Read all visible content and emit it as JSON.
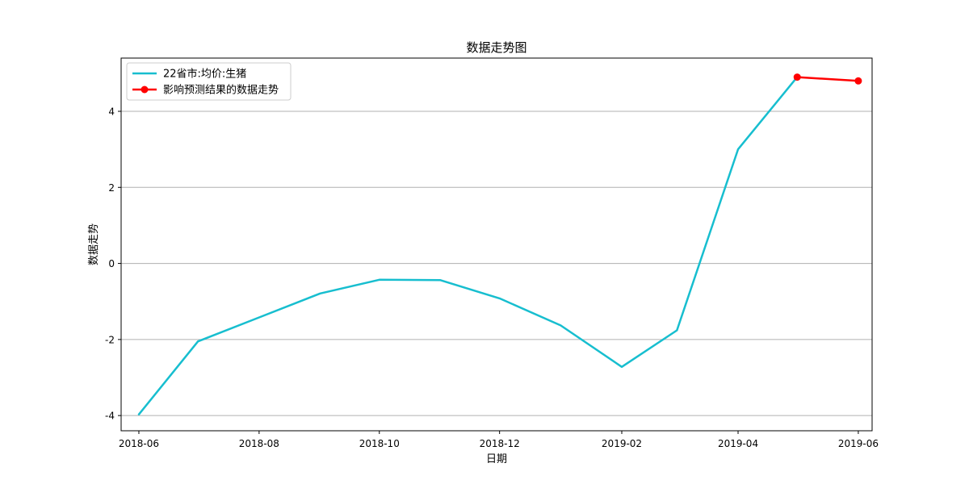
{
  "chart_data": {
    "type": "line",
    "title": "数据走势图",
    "xlabel": "日期",
    "ylabel": "数据走势",
    "x_ticks": [
      "2018-06",
      "2018-08",
      "2018-10",
      "2018-12",
      "2019-02",
      "2019-04",
      "2019-06"
    ],
    "y_ticks": [
      -4,
      -2,
      0,
      2,
      4
    ],
    "xlim": [
      "2018-05-23",
      "2019-06-08"
    ],
    "ylim": [
      -4.4,
      5.4
    ],
    "grid": "horizontal",
    "legend_position": "top-left",
    "series": [
      {
        "name": "22省市:均价:生猪",
        "color": "#17becf",
        "marker": "none",
        "points": [
          {
            "x": "2018-06-01",
            "y": -3.97
          },
          {
            "x": "2018-07-01",
            "y": -2.05
          },
          {
            "x": "2018-08-01",
            "y": -1.42
          },
          {
            "x": "2018-09-01",
            "y": -0.79
          },
          {
            "x": "2018-10-01",
            "y": -0.43
          },
          {
            "x": "2018-11-01",
            "y": -0.44
          },
          {
            "x": "2018-12-01",
            "y": -0.92
          },
          {
            "x": "2019-01-01",
            "y": -1.63
          },
          {
            "x": "2019-02-01",
            "y": -2.72
          },
          {
            "x": "2019-03-01",
            "y": -1.76
          },
          {
            "x": "2019-04-01",
            "y": 3.0
          },
          {
            "x": "2019-05-01",
            "y": 4.9
          }
        ]
      },
      {
        "name": "影响预测结果的数据走势",
        "color": "#ff0000",
        "marker": "circle",
        "points": [
          {
            "x": "2019-05-01",
            "y": 4.9
          },
          {
            "x": "2019-06-01",
            "y": 4.8
          }
        ]
      }
    ]
  }
}
